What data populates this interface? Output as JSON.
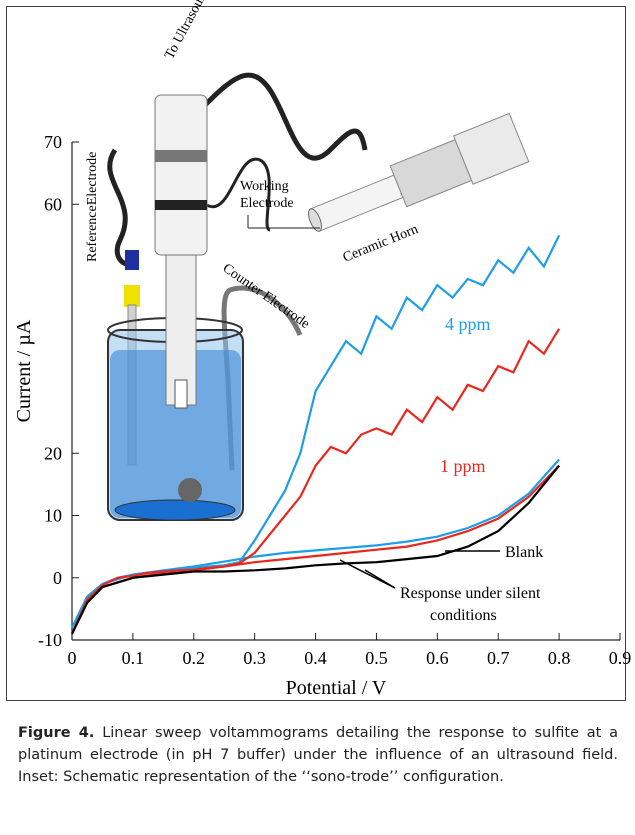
{
  "chart_data": {
    "type": "line",
    "xlabel": "Potential / V",
    "ylabel": "Current / µA",
    "xlim": [
      0,
      0.9
    ],
    "xticks": [
      0,
      0.1,
      0.2,
      0.3,
      0.4,
      0.5,
      0.6,
      0.7,
      0.8,
      0.9
    ],
    "ylim": [
      -10,
      70
    ],
    "yticks": [
      -10,
      0,
      10,
      20,
      60,
      70
    ],
    "series": [
      {
        "name": "4 ppm",
        "color": "#1e9ee8",
        "x": [
          0,
          0.025,
          0.05,
          0.075,
          0.1,
          0.125,
          0.15,
          0.175,
          0.2,
          0.225,
          0.25,
          0.275,
          0.3,
          0.325,
          0.35,
          0.375,
          0.4,
          0.425,
          0.45,
          0.475,
          0.5,
          0.525,
          0.55,
          0.575,
          0.6,
          0.625,
          0.65,
          0.675,
          0.7,
          0.725,
          0.75,
          0.775,
          0.8
        ],
        "values": [
          -8,
          -3,
          -1,
          0,
          0.5,
          0.8,
          1,
          1.2,
          1.5,
          1.8,
          2,
          2.5,
          6,
          10,
          14,
          20,
          30,
          34,
          38,
          36,
          42,
          40,
          45,
          43,
          47,
          45,
          48,
          47,
          51,
          49,
          53,
          50,
          55
        ]
      },
      {
        "name": "1 ppm",
        "color": "#e8281e",
        "x": [
          0,
          0.025,
          0.05,
          0.075,
          0.1,
          0.125,
          0.15,
          0.175,
          0.2,
          0.225,
          0.25,
          0.275,
          0.3,
          0.325,
          0.35,
          0.375,
          0.4,
          0.425,
          0.45,
          0.475,
          0.5,
          0.525,
          0.55,
          0.575,
          0.6,
          0.625,
          0.65,
          0.675,
          0.7,
          0.725,
          0.75,
          0.775,
          0.8
        ],
        "values": [
          -9,
          -3.5,
          -1.2,
          0,
          0.3,
          0.8,
          1,
          1.2,
          1.3,
          1.6,
          1.8,
          2.3,
          4,
          7,
          10,
          13,
          18,
          21,
          20,
          23,
          24,
          23,
          27,
          25,
          29,
          27,
          31,
          30,
          34,
          33,
          38,
          36,
          40
        ]
      },
      {
        "name": "Blank",
        "color": "#000000",
        "x": [
          0,
          0.025,
          0.05,
          0.1,
          0.15,
          0.2,
          0.25,
          0.3,
          0.35,
          0.4,
          0.45,
          0.5,
          0.55,
          0.6,
          0.65,
          0.7,
          0.75,
          0.8
        ],
        "values": [
          -9,
          -4,
          -1.5,
          0,
          0.5,
          1,
          1,
          1.2,
          1.5,
          2,
          2.3,
          2.5,
          3,
          3.5,
          5,
          7.5,
          12,
          18
        ]
      }
    ],
    "silent_series": [
      {
        "color": "#e8281e",
        "x": [
          0,
          0.025,
          0.05,
          0.1,
          0.15,
          0.2,
          0.25,
          0.3,
          0.35,
          0.4,
          0.45,
          0.5,
          0.55,
          0.6,
          0.65,
          0.7,
          0.75,
          0.8
        ],
        "values": [
          -9,
          -4,
          -1.5,
          0,
          0.8,
          1.2,
          1.8,
          2.5,
          3,
          3.5,
          4,
          4.5,
          5,
          6,
          7.5,
          9.5,
          13,
          18
        ]
      },
      {
        "color": "#1e9ee8",
        "x": [
          0,
          0.025,
          0.05,
          0.1,
          0.15,
          0.2,
          0.25,
          0.3,
          0.35,
          0.4,
          0.45,
          0.5,
          0.55,
          0.6,
          0.65,
          0.7,
          0.75,
          0.8
        ],
        "values": [
          -8,
          -3.5,
          -1,
          0.5,
          1.2,
          1.8,
          2.6,
          3.4,
          4,
          4.4,
          4.8,
          5.2,
          5.8,
          6.6,
          8,
          10,
          13.5,
          19
        ]
      }
    ],
    "annotations": {
      "silent_line1": "Response under silent",
      "silent_line2": "conditions"
    }
  },
  "inset": {
    "processor": "To Ultrasound Processor",
    "reference": "ReferenceElectrode",
    "working_line1": "Working",
    "working_line2": "Electrode",
    "horn": "Ceramic Horn",
    "counter": "Counter Electrode"
  },
  "caption": {
    "label": "Figure 4.",
    "text": "Linear sweep voltammograms detailing the response to sulfite at a platinum electrode (in pH 7 buffer) under the influence of an ultrasound field. Inset: Schematic representation of the ‘‘sono-trode’’ configuration."
  }
}
